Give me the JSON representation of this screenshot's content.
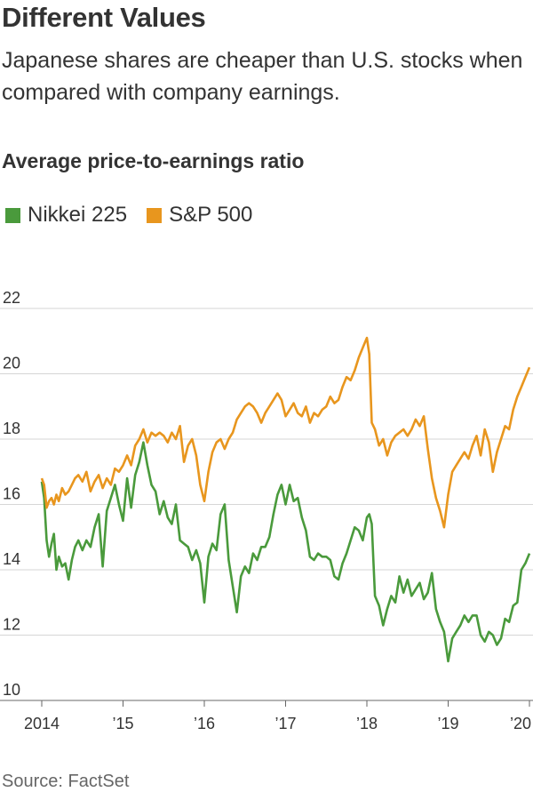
{
  "header": {
    "title": "Different Values",
    "subtitle": "Japanese shares are cheaper than U.S. stocks when compared with company earnings.",
    "chart_label": "Average price-to-earnings ratio"
  },
  "legend": [
    {
      "name": "Nikkei 225",
      "color": "#4a9a3c"
    },
    {
      "name": "S&P 500",
      "color": "#e8961e"
    }
  ],
  "source": "Source: FactSet",
  "chart_data": {
    "type": "line",
    "title": "Average price-to-earnings ratio",
    "xlabel": "",
    "ylabel": "",
    "xlim": [
      2014,
      2020
    ],
    "ylim": [
      10,
      22
    ],
    "y_ticks": [
      10,
      12,
      14,
      16,
      18,
      20,
      22
    ],
    "x_ticks": [
      {
        "value": 2014,
        "label": "2014"
      },
      {
        "value": 2015,
        "label": "’15"
      },
      {
        "value": 2016,
        "label": "’16"
      },
      {
        "value": 2017,
        "label": "’17"
      },
      {
        "value": 2018,
        "label": "’18"
      },
      {
        "value": 2019,
        "label": "’19"
      },
      {
        "value": 2020,
        "label": "’20"
      }
    ],
    "grid": "horizontal",
    "legend_position": "top-left",
    "series": [
      {
        "name": "Nikkei 225",
        "color": "#4a9a3c",
        "x": [
          2014.0,
          2014.03,
          2014.06,
          2014.09,
          2014.12,
          2014.15,
          2014.18,
          2014.21,
          2014.25,
          2014.29,
          2014.33,
          2014.37,
          2014.41,
          2014.45,
          2014.5,
          2014.55,
          2014.6,
          2014.65,
          2014.7,
          2014.75,
          2014.8,
          2014.85,
          2014.9,
          2014.95,
          2015.0,
          2015.05,
          2015.1,
          2015.15,
          2015.2,
          2015.25,
          2015.3,
          2015.35,
          2015.4,
          2015.45,
          2015.5,
          2015.55,
          2015.6,
          2015.65,
          2015.7,
          2015.75,
          2015.8,
          2015.85,
          2015.9,
          2015.95,
          2016.0,
          2016.05,
          2016.1,
          2016.15,
          2016.2,
          2016.25,
          2016.3,
          2016.35,
          2016.4,
          2016.45,
          2016.5,
          2016.55,
          2016.6,
          2016.65,
          2016.7,
          2016.75,
          2016.8,
          2016.85,
          2016.9,
          2016.95,
          2017.0,
          2017.05,
          2017.1,
          2017.15,
          2017.2,
          2017.25,
          2017.3,
          2017.35,
          2017.4,
          2017.45,
          2017.5,
          2017.55,
          2017.6,
          2017.65,
          2017.7,
          2017.75,
          2017.8,
          2017.85,
          2017.9,
          2017.95,
          2018.0,
          2018.03,
          2018.06,
          2018.1,
          2018.15,
          2018.2,
          2018.25,
          2018.3,
          2018.35,
          2018.4,
          2018.45,
          2018.5,
          2018.55,
          2018.6,
          2018.65,
          2018.7,
          2018.75,
          2018.8,
          2018.85,
          2018.9,
          2018.95,
          2019.0,
          2019.05,
          2019.1,
          2019.15,
          2019.2,
          2019.25,
          2019.3,
          2019.35,
          2019.4,
          2019.45,
          2019.5,
          2019.55,
          2019.6,
          2019.65,
          2019.7,
          2019.75,
          2019.8,
          2019.85,
          2019.9,
          2019.95,
          2020.0
        ],
        "values": [
          16.7,
          16.2,
          14.9,
          14.4,
          14.8,
          15.1,
          14.0,
          14.4,
          14.1,
          14.2,
          13.7,
          14.3,
          14.7,
          14.9,
          14.6,
          14.9,
          14.7,
          15.3,
          15.7,
          14.1,
          15.8,
          16.2,
          16.6,
          16.0,
          15.5,
          16.8,
          15.9,
          16.9,
          17.3,
          17.9,
          17.2,
          16.6,
          16.4,
          15.7,
          16.1,
          15.6,
          15.4,
          16.0,
          14.9,
          14.8,
          14.7,
          14.3,
          14.6,
          14.2,
          13.0,
          14.4,
          14.8,
          14.6,
          15.7,
          16.0,
          14.3,
          13.5,
          12.7,
          13.8,
          14.1,
          13.9,
          14.5,
          14.3,
          14.7,
          14.7,
          15.0,
          15.7,
          16.3,
          16.6,
          16.0,
          16.6,
          16.1,
          16.2,
          15.6,
          15.2,
          14.4,
          14.3,
          14.5,
          14.4,
          14.4,
          14.3,
          13.8,
          13.7,
          14.2,
          14.5,
          14.9,
          15.3,
          15.2,
          14.9,
          15.6,
          15.7,
          15.4,
          13.2,
          12.9,
          12.3,
          12.8,
          13.2,
          13.0,
          13.8,
          13.3,
          13.7,
          13.2,
          13.4,
          13.6,
          13.1,
          13.3,
          13.9,
          12.8,
          12.4,
          12.1,
          11.2,
          11.9,
          12.1,
          12.3,
          12.6,
          12.4,
          12.6,
          12.6,
          12.0,
          11.8,
          12.1,
          12.0,
          11.7,
          11.9,
          12.5,
          12.4,
          12.9,
          13.0,
          14.0,
          14.2,
          14.5
        ]
      },
      {
        "name": "S&P 500",
        "color": "#e8961e",
        "x": [
          2014.0,
          2014.03,
          2014.06,
          2014.09,
          2014.12,
          2014.15,
          2014.18,
          2014.21,
          2014.25,
          2014.29,
          2014.33,
          2014.37,
          2014.41,
          2014.45,
          2014.5,
          2014.55,
          2014.6,
          2014.65,
          2014.7,
          2014.75,
          2014.8,
          2014.85,
          2014.9,
          2014.95,
          2015.0,
          2015.05,
          2015.1,
          2015.15,
          2015.2,
          2015.25,
          2015.3,
          2015.35,
          2015.4,
          2015.45,
          2015.5,
          2015.55,
          2015.6,
          2015.65,
          2015.7,
          2015.75,
          2015.8,
          2015.85,
          2015.9,
          2015.95,
          2016.0,
          2016.05,
          2016.1,
          2016.15,
          2016.2,
          2016.25,
          2016.3,
          2016.35,
          2016.4,
          2016.45,
          2016.5,
          2016.55,
          2016.6,
          2016.65,
          2016.7,
          2016.75,
          2016.8,
          2016.85,
          2016.9,
          2016.95,
          2017.0,
          2017.05,
          2017.1,
          2017.15,
          2017.2,
          2017.25,
          2017.3,
          2017.35,
          2017.4,
          2017.45,
          2017.5,
          2017.55,
          2017.6,
          2017.65,
          2017.7,
          2017.75,
          2017.8,
          2017.85,
          2017.9,
          2017.95,
          2018.0,
          2018.03,
          2018.06,
          2018.1,
          2018.15,
          2018.2,
          2018.25,
          2018.3,
          2018.35,
          2018.4,
          2018.45,
          2018.5,
          2018.55,
          2018.6,
          2018.65,
          2018.7,
          2018.75,
          2018.8,
          2018.85,
          2018.9,
          2018.95,
          2019.0,
          2019.05,
          2019.1,
          2019.15,
          2019.2,
          2019.25,
          2019.3,
          2019.35,
          2019.4,
          2019.45,
          2019.5,
          2019.55,
          2019.6,
          2019.65,
          2019.7,
          2019.75,
          2019.8,
          2019.85,
          2019.9,
          2019.95,
          2020.0
        ],
        "values": [
          16.8,
          16.6,
          15.9,
          16.1,
          16.2,
          16.0,
          16.3,
          16.1,
          16.5,
          16.3,
          16.4,
          16.6,
          16.8,
          16.9,
          16.7,
          17.0,
          16.4,
          16.7,
          16.9,
          16.5,
          16.8,
          16.6,
          17.1,
          17.0,
          17.2,
          17.5,
          17.2,
          17.8,
          18.0,
          18.3,
          17.9,
          18.2,
          18.1,
          18.2,
          18.1,
          17.9,
          18.2,
          18.0,
          18.4,
          17.3,
          17.8,
          18.0,
          17.5,
          16.6,
          16.1,
          17.0,
          17.6,
          17.9,
          18.0,
          17.7,
          18.0,
          18.2,
          18.6,
          18.8,
          19.0,
          19.1,
          19.0,
          18.8,
          18.5,
          18.8,
          19.0,
          19.2,
          19.4,
          19.2,
          18.7,
          18.9,
          19.1,
          18.8,
          18.7,
          19.0,
          18.5,
          18.8,
          18.7,
          18.9,
          19.0,
          19.3,
          19.1,
          19.2,
          19.6,
          19.9,
          19.8,
          20.1,
          20.5,
          20.8,
          21.1,
          20.6,
          18.5,
          18.3,
          17.8,
          18.0,
          17.5,
          17.9,
          18.1,
          18.2,
          18.3,
          18.1,
          18.3,
          18.6,
          18.4,
          18.7,
          17.7,
          16.8,
          16.2,
          15.8,
          15.3,
          16.3,
          17.0,
          17.2,
          17.4,
          17.6,
          17.4,
          17.8,
          18.1,
          17.5,
          18.3,
          17.9,
          17.0,
          17.6,
          18.0,
          18.4,
          18.3,
          18.9,
          19.3,
          19.6,
          19.9,
          20.2
        ]
      }
    ]
  }
}
